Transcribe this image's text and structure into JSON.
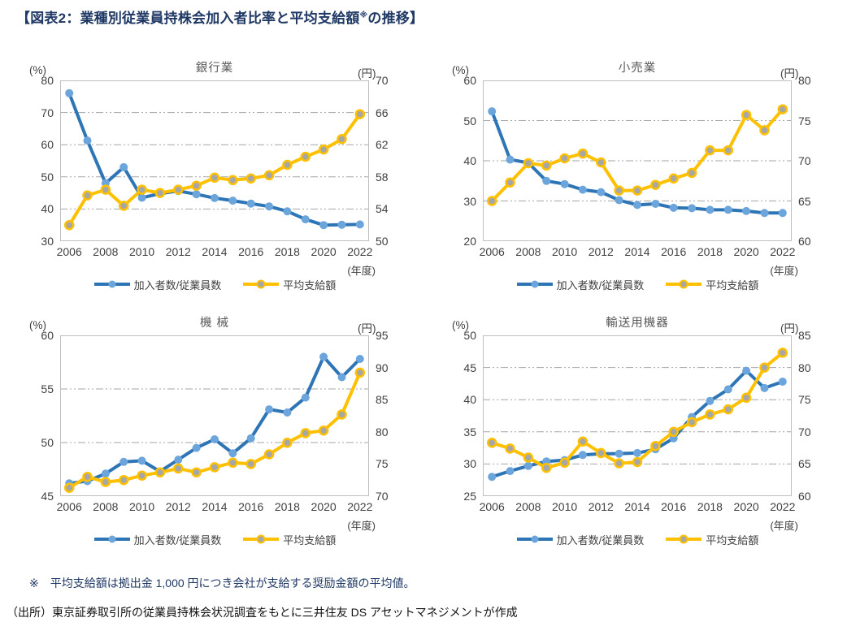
{
  "page": {
    "title": {
      "prefix": "【図表2：業種別従業員持株会加入者比率と平均支給額",
      "sup": "※",
      "suffix": "の推移】"
    },
    "footnote_note": "※　平均支給額は拠出金 1,000 円につき会社が支給する奨励金額の平均値。",
    "footnote_source": "（出所）東京証券取引所の従業員持株会状況調査をもとに三井住友 DS アセットマネジメントが作成"
  },
  "units": {
    "left": "(%)",
    "right": "(円)",
    "x": "(年度)"
  },
  "legend": [
    {
      "label": "加入者数/従業員数",
      "line_color": "#2E75B6",
      "marker_fill": "#6CA5DC",
      "marker_stroke": "none"
    },
    {
      "label": "平均支給額",
      "line_color": "#FFC000",
      "marker_fill": "#A6A6A6",
      "marker_stroke": "#FFC000"
    }
  ],
  "style_colors": {
    "gridline": "#A6A6A6",
    "plot_border": "#BFBFBF",
    "tick_text": "#404040",
    "chart_title_text": "#595959",
    "page_title_text": "#1F3864"
  },
  "x_tick_labels": [
    "2006",
    "2008",
    "2010",
    "2012",
    "2014",
    "2016",
    "2018",
    "2020",
    "2022"
  ],
  "chart_data": [
    {
      "type": "line",
      "title": "銀行業",
      "x": [
        2006,
        2007,
        2008,
        2009,
        2010,
        2011,
        2012,
        2013,
        2014,
        2015,
        2016,
        2017,
        2018,
        2019,
        2020,
        2021,
        2022
      ],
      "left_axis": {
        "label": "(%)",
        "min": 30,
        "max": 80,
        "ticks": [
          80,
          70,
          60,
          50,
          40,
          30
        ]
      },
      "right_axis": {
        "label": "(円)",
        "min": 50,
        "max": 70,
        "ticks": [
          70,
          66,
          62,
          58,
          54,
          50
        ]
      },
      "series": [
        {
          "name": "加入者数/従業員数",
          "axis": "left",
          "values": [
            76.0,
            61.3,
            48.0,
            53.0,
            43.5,
            44.8,
            45.6,
            44.6,
            43.4,
            42.6,
            41.7,
            40.8,
            39.3,
            36.8,
            35.0,
            35.1,
            35.2
          ]
        },
        {
          "name": "平均支給額",
          "axis": "right",
          "values": [
            52.0,
            55.7,
            56.4,
            54.4,
            56.4,
            56.0,
            56.4,
            56.9,
            57.9,
            57.6,
            57.8,
            58.2,
            59.5,
            60.5,
            61.4,
            62.7,
            65.8
          ]
        }
      ]
    },
    {
      "type": "line",
      "title": "小売業",
      "x": [
        2006,
        2007,
        2008,
        2009,
        2010,
        2011,
        2012,
        2013,
        2014,
        2015,
        2016,
        2017,
        2018,
        2019,
        2020,
        2021,
        2022
      ],
      "left_axis": {
        "label": "(%)",
        "min": 20,
        "max": 60,
        "ticks": [
          60,
          50,
          40,
          30,
          20
        ]
      },
      "right_axis": {
        "label": "(円)",
        "min": 60,
        "max": 80,
        "ticks": [
          80,
          75,
          70,
          65,
          60
        ]
      },
      "series": [
        {
          "name": "加入者数/従業員数",
          "axis": "left",
          "values": [
            52.3,
            40.3,
            39.5,
            35.0,
            34.2,
            32.8,
            32.2,
            30.2,
            29.0,
            29.3,
            28.3,
            28.2,
            27.8,
            27.8,
            27.5,
            27.0,
            27.0
          ]
        },
        {
          "name": "平均支給額",
          "axis": "right",
          "values": [
            65.0,
            67.3,
            69.7,
            69.4,
            70.3,
            70.9,
            69.8,
            66.3,
            66.3,
            67.0,
            67.8,
            68.5,
            71.3,
            71.3,
            75.7,
            73.8,
            76.4
          ]
        }
      ]
    },
    {
      "type": "line",
      "title": "機 械",
      "x": [
        2006,
        2007,
        2008,
        2009,
        2010,
        2011,
        2012,
        2013,
        2014,
        2015,
        2016,
        2017,
        2018,
        2019,
        2020,
        2021,
        2022
      ],
      "left_axis": {
        "label": "(%)",
        "min": 45,
        "max": 60,
        "ticks": [
          60,
          55,
          50,
          45
        ]
      },
      "right_axis": {
        "label": "(円)",
        "min": 70,
        "max": 95,
        "ticks": [
          95,
          90,
          85,
          80,
          75,
          70
        ]
      },
      "series": [
        {
          "name": "加入者数/従業員数",
          "axis": "left",
          "values": [
            46.2,
            46.4,
            47.1,
            48.2,
            48.3,
            47.3,
            48.4,
            49.5,
            50.3,
            49.0,
            50.4,
            53.1,
            52.8,
            54.2,
            58.0,
            56.1,
            57.8
          ]
        },
        {
          "name": "平均支給額",
          "axis": "right",
          "values": [
            71.3,
            73.0,
            72.2,
            72.5,
            73.2,
            73.7,
            74.3,
            73.7,
            74.5,
            75.2,
            75.0,
            76.5,
            78.3,
            79.8,
            80.2,
            82.7,
            89.2
          ]
        }
      ]
    },
    {
      "type": "line",
      "title": "輸送用機器",
      "x": [
        2006,
        2007,
        2008,
        2009,
        2010,
        2011,
        2012,
        2013,
        2014,
        2015,
        2016,
        2017,
        2018,
        2019,
        2020,
        2021,
        2022
      ],
      "left_axis": {
        "label": "(%)",
        "min": 25,
        "max": 50,
        "ticks": [
          50,
          45,
          40,
          35,
          30,
          25
        ]
      },
      "right_axis": {
        "label": "(円)",
        "min": 60,
        "max": 85,
        "ticks": [
          85,
          80,
          75,
          70,
          65,
          60
        ]
      },
      "series": [
        {
          "name": "加入者数/従業員数",
          "axis": "left",
          "values": [
            28.0,
            28.9,
            29.7,
            30.4,
            30.6,
            31.4,
            31.6,
            31.6,
            31.7,
            32.3,
            34.0,
            37.3,
            39.8,
            41.6,
            44.5,
            41.8,
            42.8
          ]
        },
        {
          "name": "平均支給額",
          "axis": "right",
          "values": [
            68.3,
            67.4,
            66.0,
            64.4,
            65.2,
            68.5,
            66.7,
            65.1,
            65.3,
            67.8,
            70.0,
            71.5,
            72.7,
            73.5,
            75.3,
            80.0,
            82.3
          ]
        }
      ]
    }
  ]
}
